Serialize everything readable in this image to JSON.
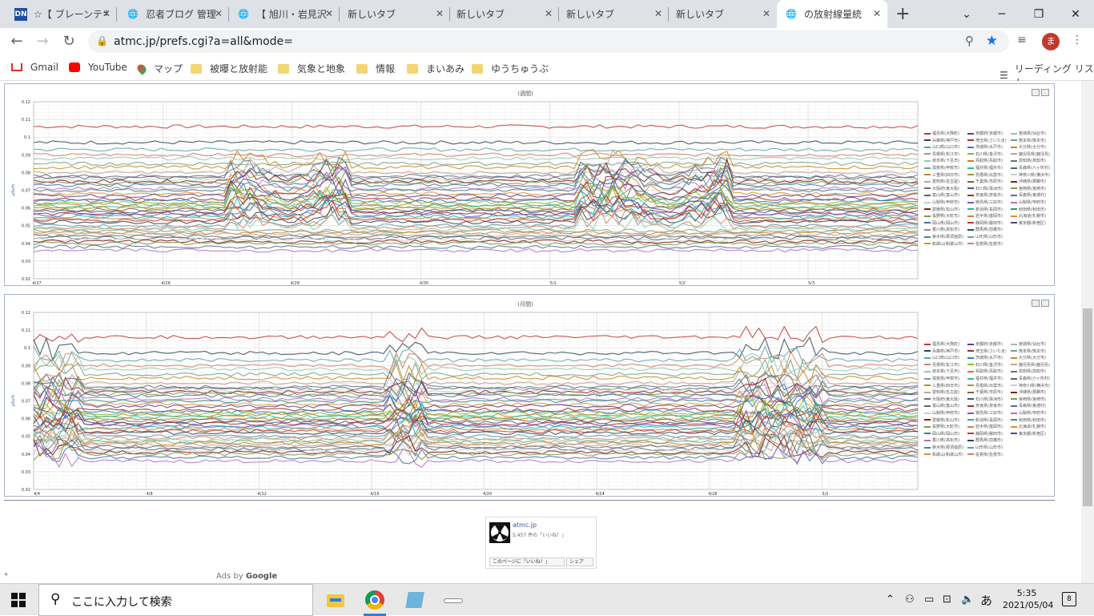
{
  "browser": {
    "tabs": [
      {
        "title": "☆【 ブレーンテキ",
        "favicon": "dn-icon"
      },
      {
        "title": "忍者ブログ 管理",
        "favicon": "globe-icon"
      },
      {
        "title": "【 旭川・岩見沢",
        "favicon": "globe-icon"
      },
      {
        "title": "新しいタブ",
        "favicon": ""
      },
      {
        "title": "新しいタブ",
        "favicon": ""
      },
      {
        "title": "新しいタブ",
        "favicon": ""
      },
      {
        "title": "新しいタブ",
        "favicon": ""
      },
      {
        "title": "の放射線量統",
        "favicon": "globe-icon"
      }
    ],
    "url": "atmc.jp/prefs.cgi?a=all&mode=",
    "avatar_letter": "ま",
    "bookmarks": [
      {
        "label": "Gmail",
        "icon": "gmail-icon"
      },
      {
        "label": "YouTube",
        "icon": "youtube-icon"
      },
      {
        "label": "マップ",
        "icon": "maps-icon"
      },
      {
        "label": "被曝と放射能",
        "icon": "folder-icon"
      },
      {
        "label": "気象と地象",
        "icon": "folder-icon"
      },
      {
        "label": "情報",
        "icon": "folder-icon"
      },
      {
        "label": "まいあみ",
        "icon": "folder-icon"
      },
      {
        "label": "ゆうちゅうぶ",
        "icon": "folder-icon"
      }
    ],
    "reading_list": "リーディング リスト"
  },
  "charts_meta": {
    "unit": "μSv/h",
    "legend": [
      "福島県(大熊町)",
      "兵庫県(神戸市)",
      "山口県(山口市)",
      "島根県(松江市)",
      "岐阜県(下呂市)",
      "滋賀県(甲賀市)",
      "三重県(四日市)",
      "愛知県(名古屋)",
      "大阪府(東大阪)",
      "富山県(富山市)",
      "山梨県(甲府市)",
      "愛媛県(松山市)",
      "長野県(大町市)",
      "岡山県(岡山市)",
      "香川県(高松市)",
      "栃木県(那須塩原)",
      "和歌山(和歌山市)",
      "京都府(京都市)",
      "埼玉県(さいたま)",
      "茨城県(水戸市)",
      "石川県(金沢市)",
      "鳥取県(鳥取市)",
      "福井県(福井市)",
      "島根県(出雲市)",
      "千葉県(市原市)",
      "石川県(珠洲市)",
      "奈良県(奈良市)",
      "徳島県(三好市)",
      "新潟県(長岡市)",
      "岩手県(盛岡市)",
      "静岡県(磐田市)",
      "群馬県(前橋市)",
      "山形県(山形市)",
      "佐賀県(佐賀市)",
      "宮城県(仙台市)",
      "熊本県(熊本市)",
      "大分県(大分市)",
      "鹿児島県(鹿児島)",
      "高知県(高知市)",
      "青森県(六ヶ所村)",
      "神奈川県(横浜市)",
      "沖縄県(那覇市)",
      "宮崎県(宮崎市)",
      "青森県(東通村)",
      "山梨県(甲府市)",
      "秋田県(秋田市)",
      "北海道(札幌市)",
      "東京都(新宿区)"
    ],
    "colors": [
      "#c23531",
      "#2f4554",
      "#61a0a8",
      "#d48265",
      "#91c7ae",
      "#749f83",
      "#ca8622",
      "#bda29a",
      "#6e7074",
      "#546570",
      "#c4ccd3",
      "#8b1a1a",
      "#7e9b3c",
      "#4a6fa5",
      "#b56fbf",
      "#3e8e7e",
      "#e08e2b",
      "#5a3e8e",
      "#9c2f2f",
      "#2b7fbf",
      "#7fbf2b",
      "#bf7f2b",
      "#2bbf9c",
      "#9c9c2b",
      "#8e5a3e",
      "#3e5a8e",
      "#a52a2a",
      "#6a5acd",
      "#20b2aa",
      "#cd853f"
    ]
  },
  "chart_data": [
    {
      "type": "line",
      "title": "(週間)",
      "ylabel": "μSv/h",
      "ylim": [
        0.02,
        0.12
      ],
      "yticks": [
        "0.12",
        "0.11",
        "0.1",
        "0.09",
        "0.08",
        "0.07",
        "0.06",
        "0.05",
        "0.04",
        "0.03",
        "0.02"
      ],
      "xticks": [
        "4/27",
        "4/28",
        "4/29",
        "4/30",
        "5/1",
        "5/2",
        "5/3"
      ]
    },
    {
      "type": "line",
      "title": "(月間)",
      "ylabel": "μSv/h",
      "ylim": [
        0.02,
        0.12
      ],
      "yticks": [
        "0.12",
        "0.11",
        "0.1",
        "0.09",
        "0.08",
        "0.07",
        "0.06",
        "0.05",
        "0.04",
        "0.03",
        "0.02"
      ],
      "xticks": [
        "4/4",
        "4/8",
        "4/12",
        "4/16",
        "4/20",
        "4/24",
        "4/28",
        "5/2"
      ]
    }
  ],
  "facebook": {
    "page_name": "atmc.jp",
    "likes": "5,457 件の「いいね！」",
    "like_button": "このページに「いいね！」",
    "share_button": "シェア"
  },
  "ads": {
    "prefix": "Ads by",
    "brand": "Google"
  },
  "taskbar": {
    "search_placeholder": "ここに入力して検索",
    "time": "5:35",
    "date": "2021/05/04",
    "ime": "あ",
    "notifications": "8"
  }
}
